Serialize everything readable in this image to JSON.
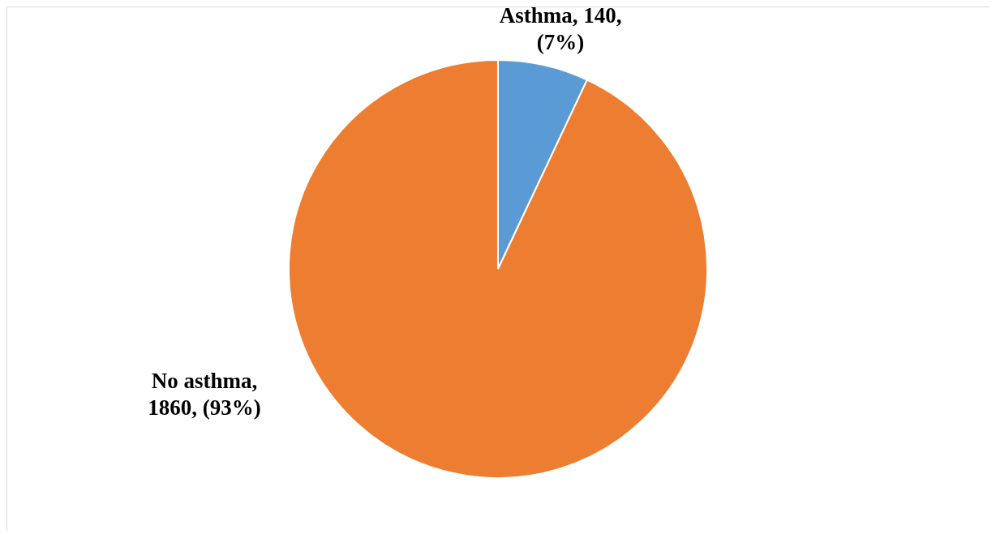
{
  "chart_data": {
    "type": "pie",
    "categories": [
      "Asthma",
      "No asthma"
    ],
    "values": [
      140,
      1860
    ],
    "colors": [
      "#5b9bd5",
      "#ed7d31"
    ],
    "value_labels": [
      ", 140, (7%)",
      ", 1860, (93%)"
    ]
  }
}
